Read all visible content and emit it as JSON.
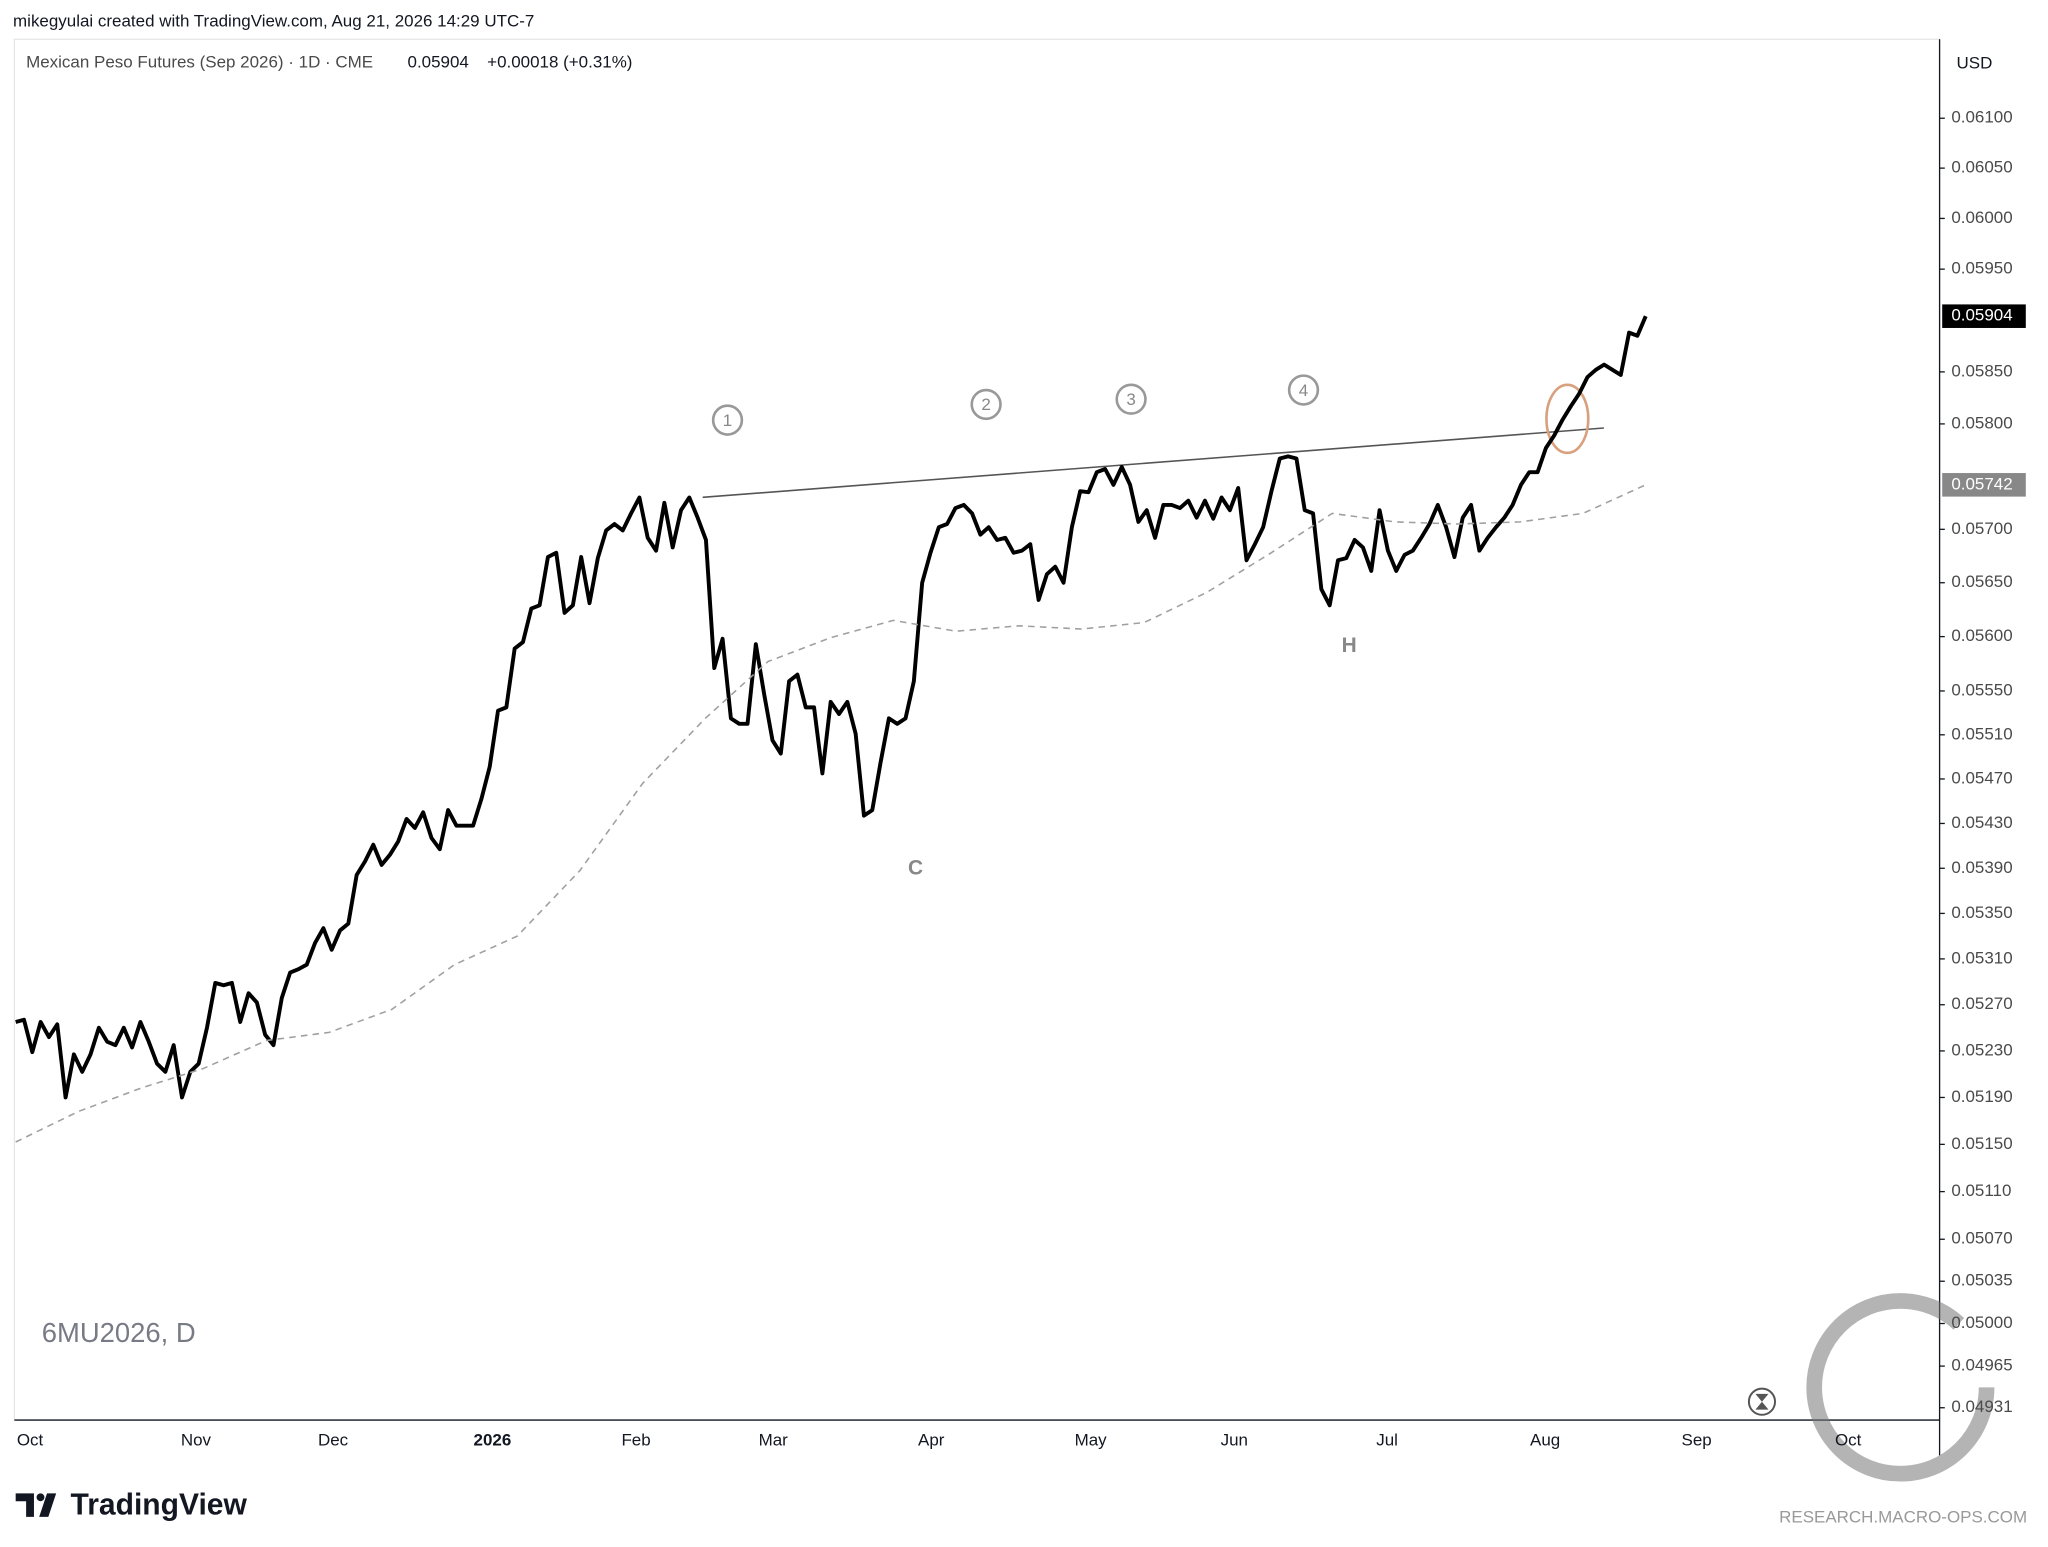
{
  "header": "mikegyulai created with TradingView.com, Aug 21, 2026 14:29 UTC-7",
  "chart_data": {
    "type": "line",
    "title": "Mexican Peso Futures (Sep 2026) · 1D · CME",
    "change": "+0.00018 (+0.31%)",
    "currency": "USD",
    "symbol_watermark": "6MU2026, D",
    "log_scale": true,
    "grid": false,
    "x_labels": [
      "Oct",
      "Nov",
      "Dec",
      "2026",
      "Feb",
      "Mar",
      "Apr",
      "May",
      "Jun",
      "Jul",
      "Aug",
      "Sep",
      "Oct"
    ],
    "ylim": [
      0.04921,
      0.0618
    ],
    "yticks": [
      {
        "value": 0.061,
        "label": "0.06100"
      },
      {
        "value": 0.0605,
        "label": "0.06050"
      },
      {
        "value": 0.06,
        "label": "0.06000"
      },
      {
        "value": 0.0595,
        "label": "0.05950"
      },
      {
        "value": 0.0585,
        "label": "0.05850"
      },
      {
        "value": 0.058,
        "label": "0.05800"
      },
      {
        "value": 0.057,
        "label": "0.05700"
      },
      {
        "value": 0.0565,
        "label": "0.05650"
      },
      {
        "value": 0.056,
        "label": "0.05600"
      },
      {
        "value": 0.0555,
        "label": "0.05550"
      },
      {
        "value": 0.0551,
        "label": "0.05510"
      },
      {
        "value": 0.0547,
        "label": "0.05470"
      },
      {
        "value": 0.0543,
        "label": "0.05430"
      },
      {
        "value": 0.0539,
        "label": "0.05390"
      },
      {
        "value": 0.0535,
        "label": "0.05350"
      },
      {
        "value": 0.0531,
        "label": "0.05310"
      },
      {
        "value": 0.0527,
        "label": "0.05270"
      },
      {
        "value": 0.0523,
        "label": "0.05230"
      },
      {
        "value": 0.0519,
        "label": "0.05190"
      },
      {
        "value": 0.0515,
        "label": "0.05150"
      },
      {
        "value": 0.0511,
        "label": "0.05110"
      },
      {
        "value": 0.0507,
        "label": "0.05070"
      },
      {
        "value": 0.05035,
        "label": "0.05035"
      },
      {
        "value": 0.05,
        "label": "0.05000"
      },
      {
        "value": 0.04965,
        "label": "0.04965"
      },
      {
        "value": 0.04931,
        "label": "0.04931"
      }
    ],
    "series": [
      {
        "color": "#000000",
        "values": [
          0.05255,
          0.05257,
          0.05229,
          0.05255,
          0.05242,
          0.05253,
          0.0519,
          0.05227,
          0.05212,
          0.05227,
          0.0525,
          0.05238,
          0.05235,
          0.0525,
          0.05233,
          0.05255,
          0.05238,
          0.05219,
          0.05212,
          0.05235,
          0.0519,
          0.05212,
          0.05219,
          0.0525,
          0.05289,
          0.05287,
          0.05289,
          0.05255,
          0.0528,
          0.05272,
          0.05244,
          0.05235,
          0.05276,
          0.05298,
          0.05301,
          0.05305,
          0.05324,
          0.05337,
          0.05318,
          0.05335,
          0.05341,
          0.05384,
          0.05396,
          0.05411,
          0.05393,
          0.05402,
          0.05414,
          0.05434,
          0.05426,
          0.0544,
          0.05417,
          0.05407,
          0.05442,
          0.05428,
          0.05428,
          0.05428,
          0.05452,
          0.05481,
          0.05532,
          0.05535,
          0.05589,
          0.05595,
          0.05626,
          0.05629,
          0.05674,
          0.05678,
          0.05622,
          0.05629,
          0.05674,
          0.05631,
          0.05673,
          0.05699,
          0.05705,
          0.05699,
          0.05715,
          0.0573,
          0.05692,
          0.0568,
          0.05725,
          0.05683,
          0.05718,
          0.0573,
          0.05711,
          0.0569,
          0.05571,
          0.05598,
          0.05525,
          0.0552,
          0.0552,
          0.05593,
          0.05547,
          0.05505,
          0.05493,
          0.05559,
          0.05565,
          0.05535,
          0.05535,
          0.05475,
          0.0554,
          0.05529,
          0.0554,
          0.05511,
          0.05437,
          0.05442,
          0.05485,
          0.05525,
          0.0552,
          0.05525,
          0.05559,
          0.0565,
          0.05678,
          0.05702,
          0.05705,
          0.0572,
          0.05723,
          0.05715,
          0.05695,
          0.05702,
          0.0569,
          0.05692,
          0.05678,
          0.0568,
          0.05686,
          0.05634,
          0.05658,
          0.05665,
          0.0565,
          0.05702,
          0.05736,
          0.05735,
          0.05754,
          0.05757,
          0.05742,
          0.05759,
          0.05742,
          0.05707,
          0.05718,
          0.05692,
          0.05723,
          0.05723,
          0.0572,
          0.05727,
          0.05711,
          0.05727,
          0.0571,
          0.0573,
          0.05718,
          0.05739,
          0.05671,
          0.05686,
          0.05702,
          0.05736,
          0.05767,
          0.05769,
          0.05767,
          0.05718,
          0.05715,
          0.05644,
          0.05629,
          0.05671,
          0.05673,
          0.0569,
          0.05683,
          0.05661,
          0.05718,
          0.0568,
          0.05661,
          0.05676,
          0.0568,
          0.05692,
          0.05705,
          0.05723,
          0.05702,
          0.05674,
          0.05711,
          0.05723,
          0.0568,
          0.05692,
          0.05702,
          0.05711,
          0.05723,
          0.05742,
          0.05754,
          0.05754,
          0.05777,
          0.05789,
          0.05804,
          0.05817,
          0.05829,
          0.05845,
          0.05852,
          0.05857,
          0.05852,
          0.05847,
          0.05888,
          0.05885,
          0.05904
        ]
      },
      {
        "color": "#a0a0a0",
        "values": [
          0.05152,
          0.05178,
          0.05198,
          0.05215,
          0.05239,
          0.05246,
          0.05266,
          0.05305,
          0.0533,
          0.05388,
          0.05466,
          0.05525,
          0.05577,
          0.05599,
          0.05615,
          0.05605,
          0.0561,
          0.05607,
          0.05613,
          0.05641,
          0.05677,
          0.05715,
          0.05707,
          0.05705,
          0.05707,
          0.05715,
          0.05742
        ]
      }
    ],
    "annotations": [
      "1",
      "2",
      "3",
      "4",
      "C",
      "H"
    ]
  },
  "footer": {
    "logo": "TradingView",
    "source": "RESEARCH.MACRO-OPS.COM"
  }
}
